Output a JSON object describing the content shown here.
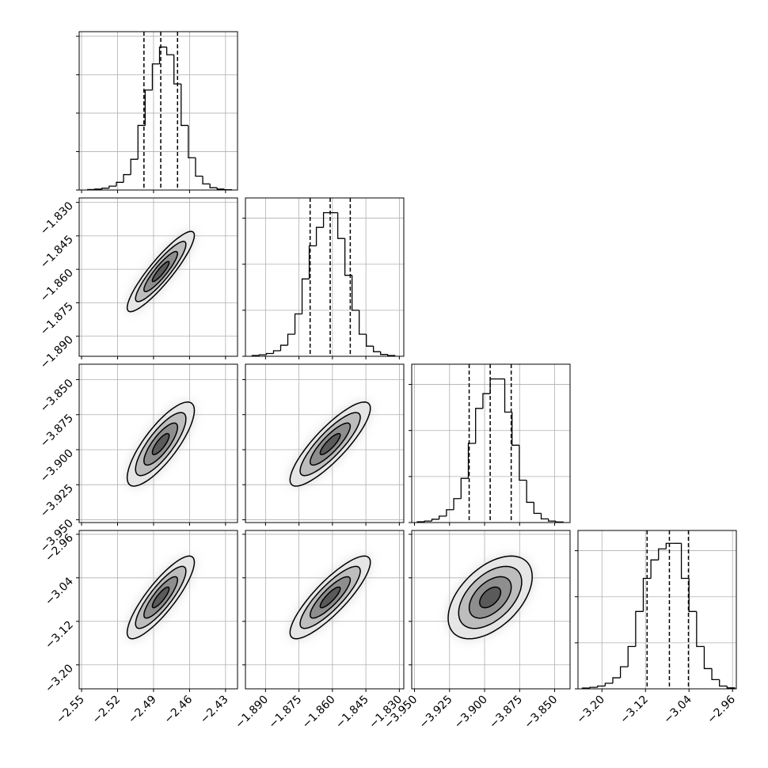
{
  "chart_data": {
    "type": "corner",
    "grid": true,
    "contour_levels": [
      0.5,
      1,
      1.5,
      2
    ],
    "params": [
      {
        "xlim": [
          -2.552,
          -2.42
        ],
        "xticks": [
          {
            "value": -2.55,
            "label": "−2.55"
          },
          {
            "value": -2.52,
            "label": "−2.52"
          },
          {
            "value": -2.49,
            "label": "−2.49"
          },
          {
            "value": -2.46,
            "label": "−2.46"
          },
          {
            "value": -2.43,
            "label": "−2.43"
          }
        ],
        "quantiles": [
          -2.498,
          -2.484,
          -2.47
        ],
        "bins": [
          -2.545,
          -2.539,
          -2.533,
          -2.527,
          -2.521,
          -2.515,
          -2.509,
          -2.503,
          -2.497,
          -2.491,
          -2.485,
          -2.479,
          -2.473,
          -2.467,
          -2.461,
          -2.455,
          -2.449,
          -2.443,
          -2.437,
          -2.431,
          -2.425
        ],
        "counts": [
          3,
          6,
          12,
          25,
          50,
          100,
          200,
          420,
          650,
          820,
          930,
          880,
          690,
          420,
          210,
          90,
          40,
          15,
          6,
          2
        ],
        "ylim": [
          0,
          1030
        ],
        "yticks": [
          0,
          250,
          500,
          750,
          1000
        ]
      },
      {
        "xlim": [
          -1.899,
          -1.828
        ],
        "xticks": [
          {
            "value": -1.89,
            "label": "−1.890"
          },
          {
            "value": -1.875,
            "label": "−1.875"
          },
          {
            "value": -1.86,
            "label": "−1.860"
          },
          {
            "value": -1.845,
            "label": "−1.845"
          },
          {
            "value": -1.83,
            "label": "−1.830"
          }
        ],
        "quantiles": [
          -1.87,
          -1.861,
          -1.852
        ],
        "bins": [
          -1.896,
          -1.8928,
          -1.8896,
          -1.8864,
          -1.8832,
          -1.88,
          -1.8768,
          -1.8736,
          -1.8704,
          -1.8672,
          -1.864,
          -1.8608,
          -1.8576,
          -1.8544,
          -1.8512,
          -1.848,
          -1.8448,
          -1.8416,
          -1.8384,
          -1.8352,
          -1.832
        ],
        "counts": [
          4,
          8,
          15,
          30,
          60,
          120,
          230,
          420,
          600,
          700,
          780,
          780,
          640,
          440,
          250,
          120,
          55,
          25,
          10,
          4
        ],
        "ylim": [
          0,
          860
        ],
        "yticks": [
          0,
          250,
          500,
          750
        ]
      },
      {
        "xlim": [
          -3.952,
          -3.839
        ],
        "xticks": [
          {
            "value": -3.95,
            "label": "−3.950"
          },
          {
            "value": -3.925,
            "label": "−3.925"
          },
          {
            "value": -3.9,
            "label": "−3.900"
          },
          {
            "value": -3.875,
            "label": "−3.875"
          },
          {
            "value": -3.85,
            "label": "−3.850"
          }
        ],
        "quantiles": [
          -3.911,
          -3.896,
          -3.881
        ],
        "bins": [
          -3.948,
          -3.9428,
          -3.9376,
          -3.9324,
          -3.9272,
          -3.922,
          -3.9168,
          -3.9116,
          -3.9064,
          -3.9012,
          -3.896,
          -3.8908,
          -3.8856,
          -3.8804,
          -3.8752,
          -3.87,
          -3.8648,
          -3.8596,
          -3.8544,
          -3.8492,
          -3.844
        ],
        "counts": [
          4,
          8,
          18,
          35,
          70,
          130,
          240,
          430,
          620,
          700,
          780,
          780,
          600,
          420,
          230,
          110,
          50,
          20,
          8,
          3
        ],
        "ylim": [
          0,
          860
        ],
        "yticks": [
          0,
          250,
          500,
          750
        ]
      },
      {
        "xlim": [
          -3.244,
          -2.953
        ],
        "xticks": [
          {
            "value": -3.2,
            "label": "−3.20"
          },
          {
            "value": -3.12,
            "label": "−3.12"
          },
          {
            "value": -3.04,
            "label": "−3.04"
          },
          {
            "value": -2.96,
            "label": "−2.96"
          }
        ],
        "quantiles": [
          -3.117,
          -3.076,
          -3.041
        ],
        "bins": [
          -3.236,
          -3.222,
          -3.208,
          -3.194,
          -3.18,
          -3.166,
          -3.152,
          -3.138,
          -3.124,
          -3.11,
          -3.096,
          -3.082,
          -3.068,
          -3.054,
          -3.04,
          -3.026,
          -3.012,
          -2.998,
          -2.984,
          -2.97,
          -2.956
        ],
        "counts": [
          4,
          8,
          15,
          30,
          60,
          120,
          230,
          420,
          600,
          700,
          760,
          790,
          790,
          600,
          420,
          230,
          110,
          50,
          15,
          5
        ],
        "ylim": [
          0,
          860
        ],
        "yticks": [
          0,
          250,
          500,
          750
        ]
      }
    ],
    "pairs": [
      {
        "x": 0,
        "y": 1,
        "rho": 0.9
      },
      {
        "x": 0,
        "y": 2,
        "rho": 0.8
      },
      {
        "x": 1,
        "y": 2,
        "rho": 0.85
      },
      {
        "x": 0,
        "y": 3,
        "rho": 0.85
      },
      {
        "x": 1,
        "y": 3,
        "rho": 0.85
      },
      {
        "x": 2,
        "y": 3,
        "rho": 0.5
      }
    ]
  }
}
